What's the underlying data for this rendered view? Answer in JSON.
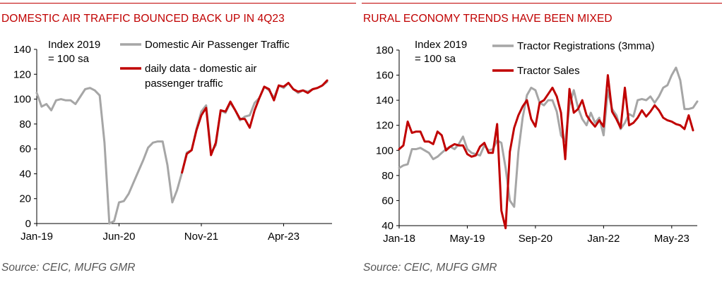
{
  "charts": [
    {
      "title": "DOMESTIC AIR TRAFFIC BOUNCED BACK UP IN 4Q23",
      "source": "Source: CEIC, MUFG GMR",
      "annotation": [
        "Index 2019",
        "= 100 sa"
      ]
    },
    {
      "title": "RURAL ECONOMY TRENDS HAVE BEEN MIXED",
      "source": "Source: CEIC, MUFG GMR",
      "annotation": [
        "Index 2019",
        "= 100 sa"
      ]
    }
  ],
  "chart_data": [
    {
      "type": "line",
      "title": "DOMESTIC AIR TRAFFIC BOUNCED BACK UP IN 4Q23",
      "xlabel": "",
      "ylabel": "",
      "ylim": [
        0,
        140
      ],
      "yticks": [
        0,
        20,
        40,
        60,
        80,
        100,
        120,
        140
      ],
      "xlim": [
        0,
        61
      ],
      "xticks": [
        {
          "x": 0,
          "label": "Jan-19"
        },
        {
          "x": 17,
          "label": "Jun-20"
        },
        {
          "x": 34,
          "label": "Nov-21"
        },
        {
          "x": 51,
          "label": "Apr-23"
        }
      ],
      "grid": false,
      "legend": "top-right",
      "series": [
        {
          "name": "Domestic Air Passenger Traffic",
          "color": "#a6a6a6",
          "legend_lines": [
            "Domestic Air Passenger Traffic"
          ],
          "points": [
            [
              0,
              105
            ],
            [
              1,
              94
            ],
            [
              2,
              96
            ],
            [
              3,
              91
            ],
            [
              4,
              99
            ],
            [
              5,
              100
            ],
            [
              6,
              99
            ],
            [
              7,
              99
            ],
            [
              8,
              96
            ],
            [
              9,
              102
            ],
            [
              10,
              108
            ],
            [
              11,
              109
            ],
            [
              12,
              107
            ],
            [
              13,
              103
            ],
            [
              14,
              65
            ],
            [
              15,
              0
            ],
            [
              16,
              2
            ],
            [
              17,
              17
            ],
            [
              18,
              18
            ],
            [
              19,
              24
            ],
            [
              20,
              33
            ],
            [
              21,
              42
            ],
            [
              22,
              51
            ],
            [
              23,
              61
            ],
            [
              24,
              65
            ],
            [
              25,
              66
            ],
            [
              26,
              66
            ],
            [
              27,
              47
            ],
            [
              28,
              17
            ],
            [
              29,
              27
            ],
            [
              30,
              41
            ],
            [
              31,
              57
            ],
            [
              32,
              59
            ],
            [
              33,
              76
            ],
            [
              34,
              90
            ],
            [
              35,
              95
            ],
            [
              36,
              57
            ],
            [
              37,
              63
            ],
            [
              38,
              91
            ],
            [
              39,
              89
            ],
            [
              40,
              97
            ],
            [
              41,
              91
            ],
            [
              42,
              83
            ],
            [
              43,
              86
            ],
            [
              44,
              87
            ],
            [
              45,
              97
            ],
            [
              46,
              101
            ],
            [
              47,
              110
            ],
            [
              48,
              107
            ],
            [
              49,
              101
            ],
            [
              50,
              111
            ],
            [
              51,
              109
            ],
            [
              52,
              113
            ],
            [
              53,
              108
            ],
            [
              54,
              105
            ],
            [
              55,
              107
            ],
            [
              56,
              106
            ],
            [
              57,
              108
            ],
            [
              58,
              109
            ],
            [
              59,
              111
            ],
            [
              60,
              114
            ]
          ]
        },
        {
          "name": "daily data - domestic air passenger traffic",
          "color": "#c00000",
          "legend_lines": [
            "daily data - domestic air",
            "passenger traffic"
          ],
          "points": [
            [
              30,
              41
            ],
            [
              31,
              56
            ],
            [
              32,
              59
            ],
            [
              33,
              75
            ],
            [
              34,
              87
            ],
            [
              35,
              93
            ],
            [
              36,
              55
            ],
            [
              37,
              65
            ],
            [
              38,
              91
            ],
            [
              39,
              90
            ],
            [
              40,
              98
            ],
            [
              41,
              91
            ],
            [
              42,
              84
            ],
            [
              43,
              84
            ],
            [
              44,
              77
            ],
            [
              45,
              91
            ],
            [
              46,
              101
            ],
            [
              47,
              110
            ],
            [
              48,
              108
            ],
            [
              49,
              99
            ],
            [
              50,
              111
            ],
            [
              51,
              110
            ],
            [
              52,
              113
            ],
            [
              53,
              108
            ],
            [
              54,
              106
            ],
            [
              55,
              107
            ],
            [
              56,
              105
            ],
            [
              57,
              108
            ],
            [
              58,
              109
            ],
            [
              59,
              111
            ],
            [
              60,
              115
            ]
          ]
        }
      ]
    },
    {
      "type": "line",
      "title": "RURAL ECONOMY TRENDS HAVE BEEN MIXED",
      "xlabel": "",
      "ylabel": "",
      "ylim": [
        40,
        180
      ],
      "yticks": [
        40,
        60,
        80,
        100,
        120,
        140,
        160,
        180
      ],
      "xlim": [
        0,
        70
      ],
      "xticks": [
        {
          "x": 0,
          "label": "Jan-18"
        },
        {
          "x": 16,
          "label": "May-19"
        },
        {
          "x": 32,
          "label": "Sep-20"
        },
        {
          "x": 48,
          "label": "Jan-22"
        },
        {
          "x": 64,
          "label": "May-23"
        }
      ],
      "grid": false,
      "legend": "top-right",
      "series": [
        {
          "name": "Tractor Registrations (3mma)",
          "color": "#a6a6a6",
          "legend_lines": [
            "Tractor Registrations (3mma)"
          ],
          "points": [
            [
              0,
              86
            ],
            [
              1,
              88
            ],
            [
              2,
              89
            ],
            [
              3,
              101
            ],
            [
              4,
              101
            ],
            [
              5,
              102
            ],
            [
              6,
              100
            ],
            [
              7,
              98
            ],
            [
              8,
              93
            ],
            [
              9,
              95
            ],
            [
              10,
              98
            ],
            [
              11,
              101
            ],
            [
              12,
              103
            ],
            [
              13,
              101
            ],
            [
              14,
              105
            ],
            [
              15,
              111
            ],
            [
              16,
              101
            ],
            [
              17,
              98
            ],
            [
              18,
              97
            ],
            [
              19,
              96
            ],
            [
              20,
              104
            ],
            [
              21,
              100
            ],
            [
              22,
              101
            ],
            [
              23,
              108
            ],
            [
              24,
              106
            ],
            [
              25,
              86
            ],
            [
              26,
              60
            ],
            [
              27,
              55
            ],
            [
              28,
              99
            ],
            [
              29,
              126
            ],
            [
              30,
              144
            ],
            [
              31,
              150
            ],
            [
              32,
              148
            ],
            [
              33,
              138
            ],
            [
              34,
              136
            ],
            [
              35,
              140
            ],
            [
              36,
              140
            ],
            [
              37,
              131
            ],
            [
              38,
              112
            ],
            [
              39,
              107
            ],
            [
              40,
              136
            ],
            [
              41,
              148
            ],
            [
              42,
              134
            ],
            [
              43,
              125
            ],
            [
              44,
              120
            ],
            [
              45,
              130
            ],
            [
              46,
              122
            ],
            [
              47,
              126
            ],
            [
              48,
              112
            ],
            [
              49,
              148
            ],
            [
              50,
              133
            ],
            [
              51,
              128
            ],
            [
              52,
              117
            ],
            [
              53,
              122
            ],
            [
              54,
              129
            ],
            [
              55,
              127
            ],
            [
              56,
              140
            ],
            [
              57,
              141
            ],
            [
              58,
              140
            ],
            [
              59,
              143
            ],
            [
              60,
              138
            ],
            [
              61,
              143
            ],
            [
              62,
              150
            ],
            [
              63,
              152
            ],
            [
              64,
              160
            ],
            [
              65,
              166
            ],
            [
              66,
              156
            ],
            [
              67,
              133
            ],
            [
              68,
              133
            ],
            [
              69,
              134
            ],
            [
              70,
              139
            ]
          ]
        },
        {
          "name": "Tractor Sales",
          "color": "#c00000",
          "legend_lines": [
            "Tractor Sales"
          ],
          "points": [
            [
              0,
              101
            ],
            [
              1,
              104
            ],
            [
              2,
              123
            ],
            [
              3,
              114
            ],
            [
              4,
              115
            ],
            [
              5,
              115
            ],
            [
              6,
              107
            ],
            [
              7,
              107
            ],
            [
              8,
              105
            ],
            [
              9,
              115
            ],
            [
              10,
              112
            ],
            [
              11,
              100
            ],
            [
              12,
              103
            ],
            [
              13,
              105
            ],
            [
              14,
              104
            ],
            [
              15,
              104
            ],
            [
              16,
              97
            ],
            [
              17,
              95
            ],
            [
              18,
              96
            ],
            [
              19,
              103
            ],
            [
              20,
              106
            ],
            [
              21,
              98
            ],
            [
              22,
              98
            ],
            [
              23,
              121
            ],
            [
              24,
              52
            ],
            [
              25,
              38
            ],
            [
              26,
              99
            ],
            [
              27,
              118
            ],
            [
              28,
              128
            ],
            [
              29,
              135
            ],
            [
              30,
              140
            ],
            [
              31,
              125
            ],
            [
              32,
              119
            ],
            [
              33,
              138
            ],
            [
              34,
              140
            ],
            [
              35,
              145
            ],
            [
              36,
              150
            ],
            [
              37,
              143
            ],
            [
              38,
              130
            ],
            [
              39,
              93
            ],
            [
              40,
              149
            ],
            [
              41,
              130
            ],
            [
              42,
              133
            ],
            [
              43,
              140
            ],
            [
              44,
              128
            ],
            [
              45,
              123
            ],
            [
              46,
              119
            ],
            [
              47,
              124
            ],
            [
              48,
              119
            ],
            [
              49,
              160
            ],
            [
              50,
              131
            ],
            [
              51,
              125
            ],
            [
              52,
              118
            ],
            [
              53,
              150
            ],
            [
              54,
              120
            ],
            [
              55,
              122
            ],
            [
              56,
              126
            ],
            [
              57,
              132
            ],
            [
              58,
              127
            ],
            [
              59,
              131
            ],
            [
              60,
              136
            ],
            [
              61,
              132
            ],
            [
              62,
              126
            ],
            [
              63,
              124
            ],
            [
              64,
              123
            ],
            [
              65,
              121
            ],
            [
              66,
              120
            ],
            [
              67,
              117
            ],
            [
              68,
              128
            ],
            [
              69,
              116
            ]
          ]
        }
      ]
    }
  ]
}
